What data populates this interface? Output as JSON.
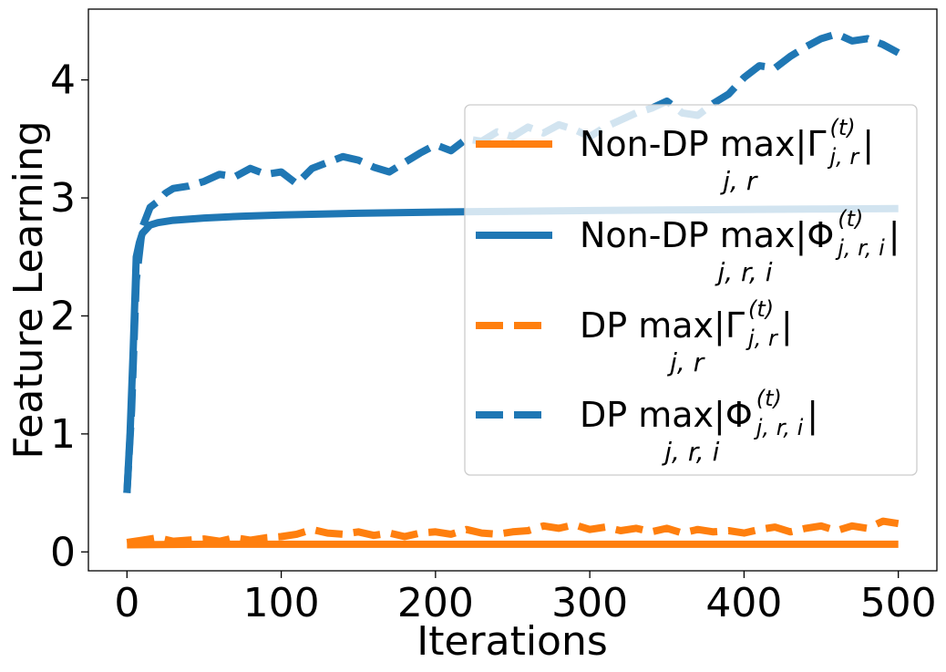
{
  "chart_data": {
    "type": "line",
    "xlabel": "Iterations",
    "ylabel": "Feature Learning",
    "xlim": [
      -25,
      525
    ],
    "ylim": [
      -0.16,
      4.6
    ],
    "xticks": [
      0,
      100,
      200,
      300,
      400,
      500
    ],
    "xtick_labels": [
      "0",
      "100",
      "200",
      "300",
      "400",
      "500"
    ],
    "yticks": [
      0,
      1,
      2,
      3,
      4
    ],
    "ytick_labels": [
      "0",
      "1",
      "2",
      "3",
      "4"
    ],
    "grid": false,
    "legend_position": "right",
    "series": [
      {
        "name": "Non-DP max|Γ_{j,r}^{(t)}|",
        "legend_label": "Non-DP max|Γ",
        "legend_sub": "j, r",
        "legend_sup_sub": "(t) j, r",
        "color": "#ff7f0e",
        "style": "solid",
        "x": [
          0,
          50,
          100,
          150,
          200,
          250,
          300,
          350,
          400,
          450,
          500
        ],
        "y": [
          0.06,
          0.065,
          0.065,
          0.065,
          0.065,
          0.065,
          0.065,
          0.065,
          0.065,
          0.065,
          0.065
        ]
      },
      {
        "name": "Non-DP max|Φ_{j,r,i}^{(t)}|",
        "legend_label": "Non-DP max|Φ",
        "legend_sub": "j, r, i",
        "color": "#1f77b4",
        "style": "solid",
        "x": [
          0,
          2,
          4,
          6,
          8,
          10,
          15,
          20,
          30,
          50,
          75,
          100,
          150,
          200,
          250,
          300,
          350,
          400,
          450,
          500
        ],
        "y": [
          0.5,
          1.0,
          1.7,
          2.5,
          2.62,
          2.7,
          2.77,
          2.79,
          2.81,
          2.83,
          2.845,
          2.855,
          2.87,
          2.88,
          2.887,
          2.893,
          2.898,
          2.902,
          2.906,
          2.91
        ]
      },
      {
        "name": "DP max|Γ_{j,r}^{(t)}|",
        "legend_label": "DP max|Γ",
        "legend_sub": "j, r",
        "color": "#ff7f0e",
        "style": "dashed",
        "x": [
          0,
          10,
          20,
          30,
          40,
          50,
          60,
          70,
          80,
          90,
          100,
          110,
          120,
          130,
          140,
          150,
          160,
          170,
          180,
          190,
          200,
          210,
          220,
          230,
          240,
          250,
          260,
          270,
          280,
          290,
          300,
          310,
          320,
          330,
          340,
          350,
          360,
          370,
          380,
          390,
          400,
          410,
          420,
          430,
          440,
          450,
          460,
          470,
          480,
          490,
          500
        ],
        "y": [
          0.08,
          0.1,
          0.12,
          0.09,
          0.1,
          0.11,
          0.09,
          0.12,
          0.1,
          0.12,
          0.13,
          0.15,
          0.19,
          0.16,
          0.15,
          0.17,
          0.14,
          0.16,
          0.13,
          0.16,
          0.17,
          0.15,
          0.19,
          0.16,
          0.15,
          0.17,
          0.18,
          0.22,
          0.2,
          0.23,
          0.19,
          0.21,
          0.18,
          0.2,
          0.17,
          0.2,
          0.16,
          0.19,
          0.17,
          0.18,
          0.16,
          0.19,
          0.21,
          0.17,
          0.2,
          0.22,
          0.18,
          0.22,
          0.2,
          0.26,
          0.24
        ]
      },
      {
        "name": "DP max|Φ_{j,r,i}^{(t)}|",
        "legend_label": "DP max|Φ",
        "legend_sub": "j, r, i",
        "color": "#1f77b4",
        "style": "dashed",
        "x": [
          0,
          3,
          6,
          10,
          15,
          20,
          25,
          30,
          40,
          50,
          60,
          70,
          80,
          90,
          100,
          110,
          120,
          130,
          140,
          150,
          160,
          170,
          180,
          190,
          200,
          210,
          220,
          230,
          240,
          250,
          260,
          270,
          280,
          290,
          300,
          310,
          320,
          330,
          340,
          350,
          360,
          370,
          380,
          390,
          400,
          410,
          420,
          430,
          440,
          450,
          460,
          470,
          480,
          490,
          500
        ],
        "y": [
          0.5,
          1.2,
          2.3,
          2.75,
          2.92,
          2.97,
          3.04,
          3.08,
          3.1,
          3.14,
          3.2,
          3.18,
          3.25,
          3.2,
          3.22,
          3.12,
          3.25,
          3.3,
          3.35,
          3.32,
          3.26,
          3.22,
          3.3,
          3.38,
          3.45,
          3.4,
          3.5,
          3.48,
          3.56,
          3.52,
          3.6,
          3.55,
          3.62,
          3.58,
          3.52,
          3.6,
          3.66,
          3.72,
          3.76,
          3.82,
          3.72,
          3.7,
          3.8,
          3.88,
          4.02,
          4.12,
          4.1,
          4.2,
          4.28,
          4.35,
          4.39,
          4.33,
          4.35,
          4.3,
          4.23
        ]
      }
    ]
  }
}
